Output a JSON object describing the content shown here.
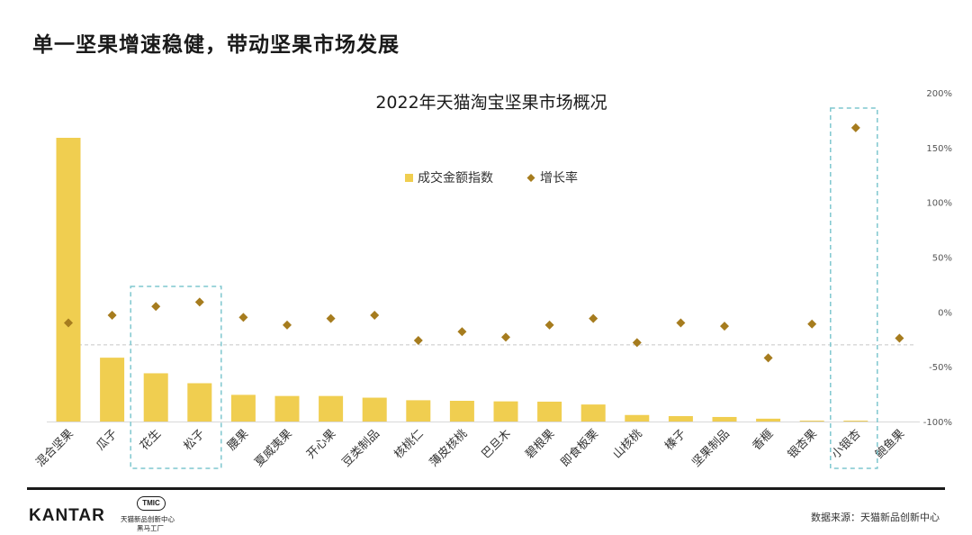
{
  "slide": {
    "title": "单一坚果增速稳健，带动坚果市场发展",
    "source": "数据来源：天猫新品创新中心",
    "kantar_logo": "KANTAR",
    "tmic_badge": "TMIC",
    "tmic_line1": "天猫新品创新中心",
    "tmic_line2": "黑马工厂"
  },
  "colors": {
    "bar": "#F0CE50",
    "marker": "#A67C1E",
    "highlight_box": "#7FC7CF",
    "reference_line": "#C8C8C8"
  },
  "chart_data": {
    "type": "bar",
    "title": "2022年天猫淘宝坚果市场概况",
    "categories": [
      "混合坚果",
      "瓜子",
      "花生",
      "松子",
      "腰果",
      "夏威夷果",
      "开心果",
      "豆类制品",
      "核桃仁",
      "薄皮核桃",
      "巴旦木",
      "碧根果",
      "即食板栗",
      "山核桃",
      "榛子",
      "坚果制品",
      "香榧",
      "银杏果",
      "小银杏",
      "鲍鱼果"
    ],
    "series": [
      {
        "name": "成交金额指数",
        "type": "bar",
        "axis": "left",
        "values": [
          100,
          22.5,
          17,
          13.5,
          9.4,
          9,
          9,
          8.4,
          7.5,
          7.3,
          7.1,
          7,
          6,
          2.3,
          1.9,
          1.6,
          1,
          0.3,
          0.3,
          0
        ]
      },
      {
        "name": "增长率",
        "type": "scatter",
        "axis": "right",
        "unit": "%",
        "values": [
          -10,
          -3,
          5,
          9,
          -5,
          -12,
          -6,
          -3,
          -26,
          -18,
          -23,
          -12,
          -6,
          -28,
          -10,
          -13,
          -42,
          -11,
          168,
          -24
        ]
      }
    ],
    "y_right": {
      "range": [
        -100,
        200
      ],
      "ticks": [
        "200%",
        "150%",
        "100%",
        "50%",
        "0%",
        "-50%",
        "-100%"
      ]
    },
    "legend_position": "top-center",
    "reference_line_growth": -30,
    "highlight_groups": [
      [
        "花生",
        "松子"
      ],
      [
        "小银杏"
      ]
    ]
  }
}
